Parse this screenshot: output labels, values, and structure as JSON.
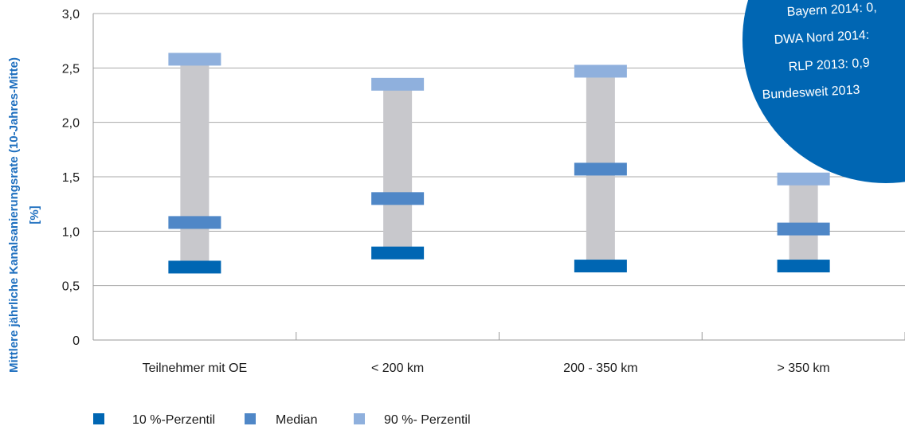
{
  "chart_data": {
    "type": "bar",
    "title": "",
    "ylabel_lines": [
      "Mittlere jährliche Kanalsanierungsrate (10-Jahres-Mitte)",
      "[%]"
    ],
    "ylim": [
      0,
      3.0
    ],
    "yticks": [
      "0",
      "0,5",
      "1,0",
      "1,5",
      "2,0",
      "2,5",
      "3,0"
    ],
    "grid": true,
    "legend_position": "bottom-left",
    "categories": [
      "Teilnehmer mit OE",
      "< 200 km",
      "200 - 350 km",
      "> 350 km"
    ],
    "series": [
      {
        "name": "10 %-Perzentil",
        "values": [
          0.67,
          0.8,
          0.68,
          0.68
        ]
      },
      {
        "name": "Median",
        "values": [
          1.08,
          1.3,
          1.57,
          1.02
        ]
      },
      {
        "name": "90 %- Perzentil",
        "values": [
          2.58,
          2.35,
          2.47,
          1.48
        ]
      }
    ],
    "colors": {
      "p10": "#0066b3",
      "median": "#4f87c7",
      "p90": "#8fb0dd",
      "range": "#c8c8cc",
      "bubble": "#0066b3"
    },
    "annotation": {
      "lines": [
        "Bayern 2014: 0,",
        "DWA Nord 2014:",
        "RLP 2013: 0,9",
        "Bundesweit 2013"
      ]
    }
  }
}
